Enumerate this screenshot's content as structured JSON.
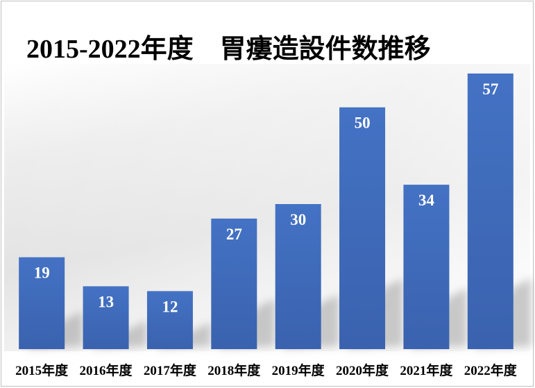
{
  "chart_data": {
    "type": "bar",
    "title": "2015-2022年度　胃瘻造設件数推移",
    "categories": [
      "2015年度",
      "2016年度",
      "2017年度",
      "2018年度",
      "2019年度",
      "2020年度",
      "2021年度",
      "2022年度"
    ],
    "values": [
      19,
      13,
      12,
      27,
      30,
      50,
      34,
      57
    ],
    "ylim": [
      0,
      60
    ],
    "grid": false,
    "legend": "none",
    "data_labels": "inside-top",
    "bar_color": "#4472C4",
    "bar_color_dark": "#3A62AE",
    "label_color": "#FFFFFF"
  }
}
